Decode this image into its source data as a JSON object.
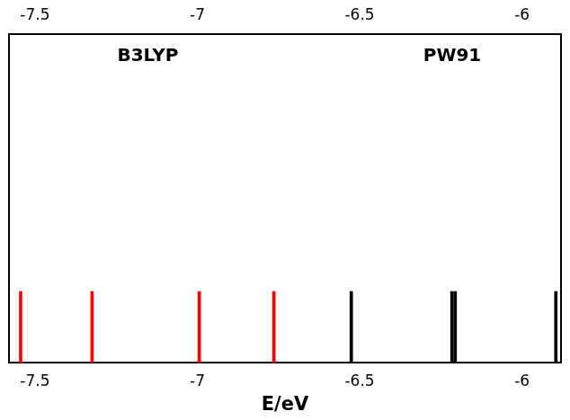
{
  "chart_data": {
    "type": "stick",
    "xlabel": "E/eV",
    "series": [
      {
        "name": "B3LYP",
        "color": "#ff0000",
        "x": [
          -7.54,
          -7.32,
          -6.99,
          -6.76
        ],
        "values": [
          1,
          1,
          1,
          1
        ]
      },
      {
        "name": "PW91",
        "color": "#000000",
        "x": [
          -6.53,
          -6.22,
          -6.21,
          -5.9
        ],
        "values": [
          1,
          1,
          1,
          1
        ]
      }
    ],
    "xlim": [
      -7.58,
      -5.88
    ],
    "xticks": [
      -7.5,
      -7,
      -6.5,
      -6
    ],
    "ylim": [
      0,
      4.6
    ],
    "grid": false,
    "tick_labels": "x"
  }
}
